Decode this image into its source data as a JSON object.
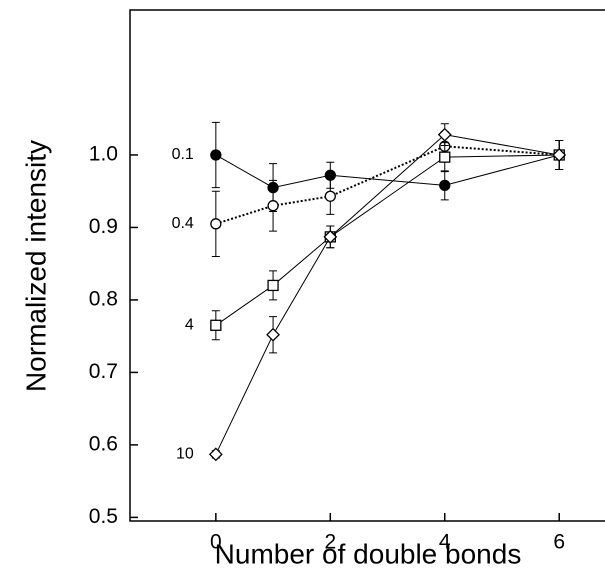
{
  "chart_data": {
    "type": "line",
    "x_label": "Number of double bonds",
    "y_label": "Normalized intensity",
    "xlim": [
      -1.5,
      6.8
    ],
    "ylim": [
      0.495,
      1.2
    ],
    "xticks": [
      0,
      2,
      4,
      6
    ],
    "yticks": [
      0.5,
      0.6,
      0.7,
      0.8,
      0.9,
      {
        "value": 1.0,
        "label": "1.0"
      }
    ],
    "x": [
      0,
      1,
      2,
      4,
      6
    ],
    "series": [
      {
        "name": "0.1",
        "color": "#000000",
        "marker": "filled-circle",
        "dash": "solid",
        "values": [
          1.0,
          0.955,
          0.972,
          0.958,
          1.0
        ],
        "errors": [
          0.045,
          0.033,
          0.018,
          0.02,
          0.02
        ]
      },
      {
        "name": "0.4",
        "color": "#000000",
        "marker": "circle",
        "dash": "dotted",
        "values": [
          0.905,
          0.93,
          0.943,
          1.012,
          1.0
        ],
        "errors": [
          0.045,
          0.035,
          0.025,
          0.02,
          0.02
        ]
      },
      {
        "name": "4",
        "color": "#000000",
        "marker": "square",
        "dash": "solid",
        "values": [
          0.765,
          0.82,
          0.887,
          0.997,
          1.0
        ],
        "errors": [
          0.02,
          0.02,
          0.015,
          0.02,
          0.02
        ]
      },
      {
        "name": "10",
        "color": "#000000",
        "marker": "diamond",
        "dash": "solid",
        "values": [
          0.587,
          0.752,
          0.887,
          1.028,
          1.0
        ],
        "errors": [
          0.005,
          0.025,
          0.015,
          0.015,
          0.02
        ]
      }
    ]
  }
}
